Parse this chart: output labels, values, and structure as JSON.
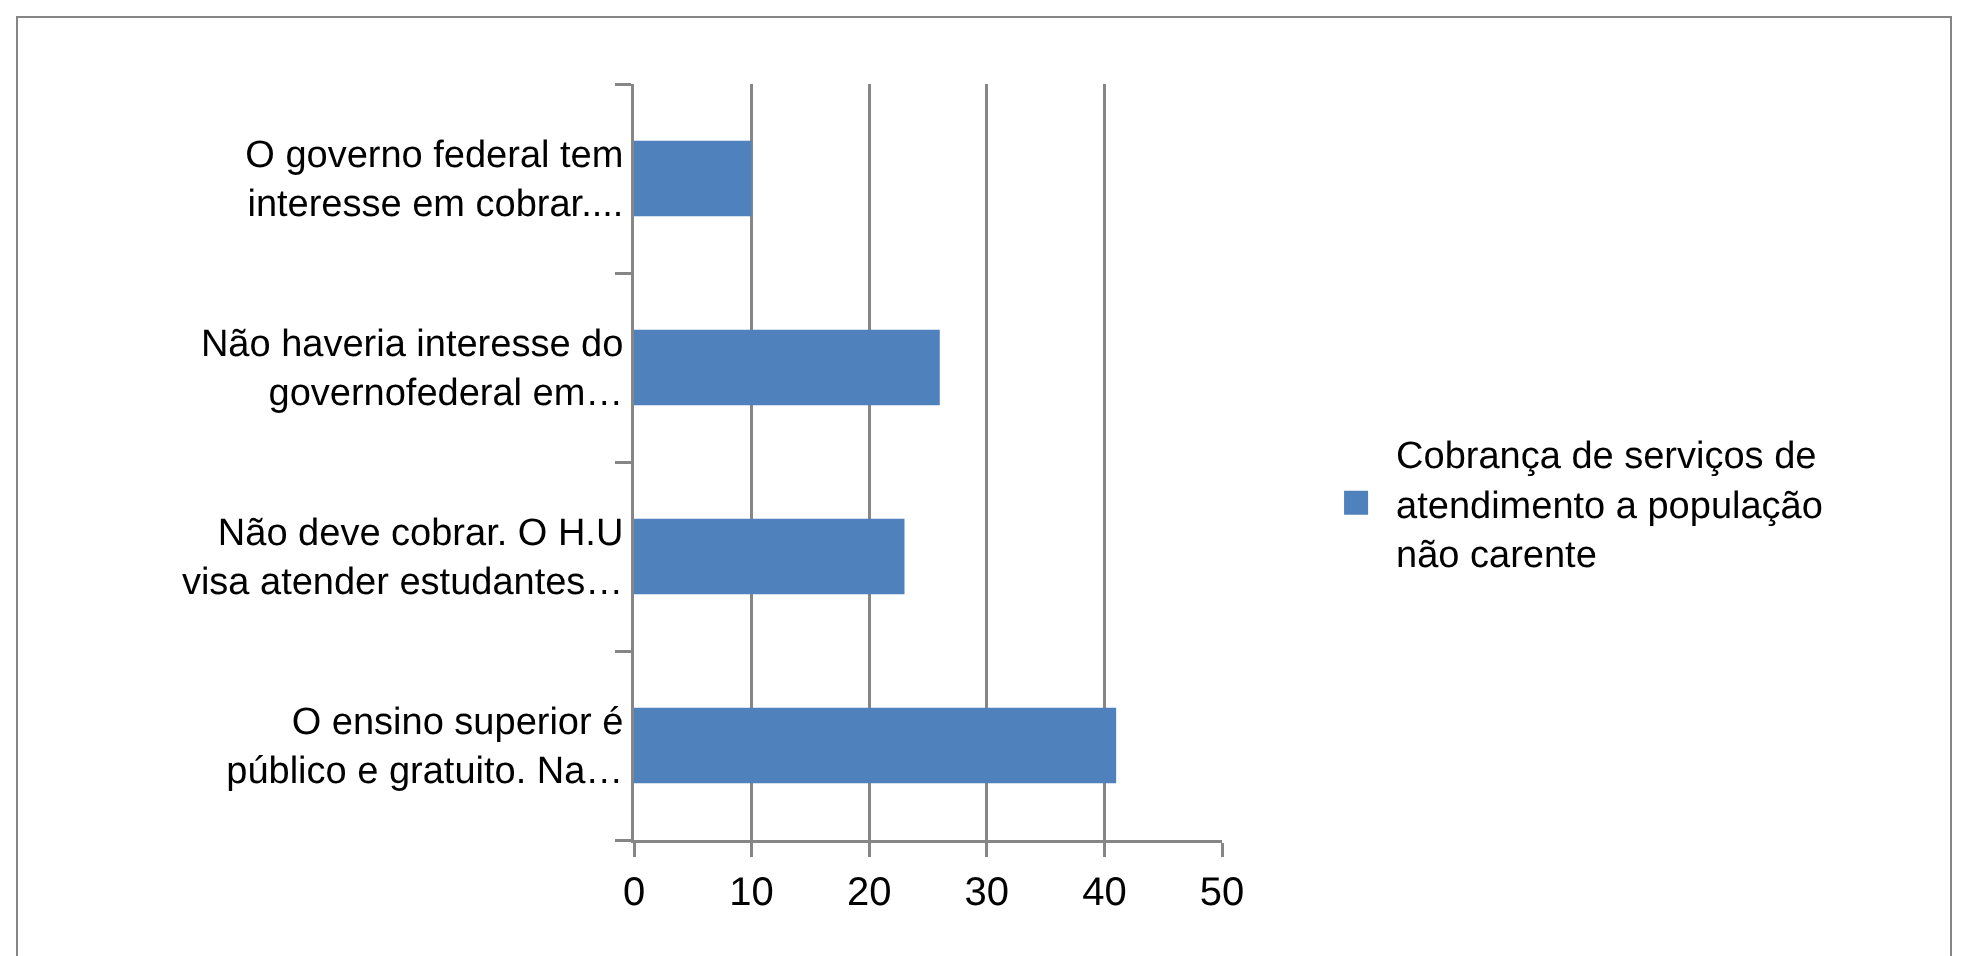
{
  "chart_data": {
    "type": "bar",
    "orientation": "horizontal",
    "categories": [
      "O governo federal tem interesse em cobrar....",
      "Não haveria interesse do governofederal em…",
      "Não deve cobrar. O H.U visa atender estudantes…",
      "O ensino superior é público e gratuito. Na…"
    ],
    "series": [
      {
        "name": "Cobrança de serviços de atendimento a população não carente",
        "color": "#4f81bd",
        "values": [
          10,
          26,
          23,
          41
        ]
      }
    ],
    "xlim": [
      0,
      50
    ],
    "xticks": [
      0,
      10,
      20,
      30,
      40,
      50
    ],
    "grid": "x",
    "legend": "right"
  }
}
